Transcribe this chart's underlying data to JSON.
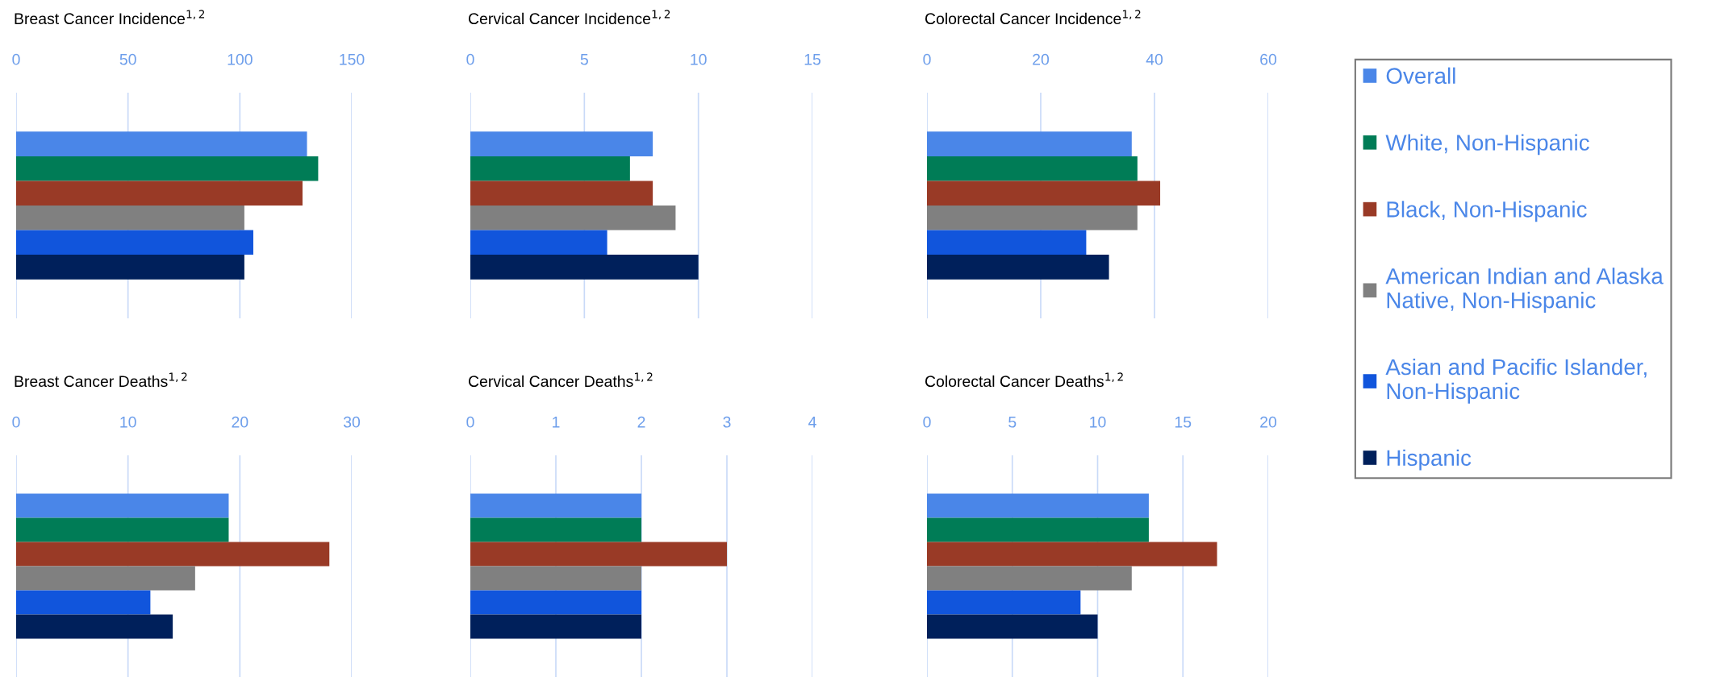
{
  "chart_data": [
    {
      "type": "bar",
      "orientation": "horizontal",
      "title": "Breast Cancer Incidence$^{1,2}$",
      "categories": [
        null
      ],
      "xlim": [
        0,
        150
      ],
      "xticks": [
        0,
        50,
        100,
        150
      ],
      "grid": "x",
      "tick_labels": "x",
      "legend": "right",
      "series": [
        {
          "name": "Overall",
          "color": "#4a86e8",
          "values": [
            130
          ]
        },
        {
          "name": "White, Non-Hispanic",
          "color": "#007c56",
          "values": [
            135
          ]
        },
        {
          "name": "Black, Non-Hispanic",
          "color": "#993a26",
          "values": [
            128
          ]
        },
        {
          "name": "American Indian and Alaska\nNative, Non-Hispanic",
          "color": "#808080",
          "values": [
            102
          ]
        },
        {
          "name": "Asian and Pacific Islander,\nNon-Hispanic",
          "color": "#1155dc",
          "values": [
            106
          ]
        },
        {
          "name": "Hispanic",
          "color": "#00205b",
          "values": [
            102
          ]
        }
      ]
    },
    {
      "type": "bar",
      "orientation": "horizontal",
      "title": "Cervical Cancer Incidence$^{1,2}$",
      "categories": [
        null
      ],
      "xlim": [
        0,
        15
      ],
      "xticks": [
        0,
        5,
        10,
        15
      ],
      "grid": "x",
      "tick_labels": "x",
      "series": [
        {
          "color": "#4a86e8",
          "values": [
            8
          ]
        },
        {
          "color": "#007c56",
          "values": [
            7
          ]
        },
        {
          "color": "#993a26",
          "values": [
            8
          ]
        },
        {
          "color": "#808080",
          "values": [
            9
          ]
        },
        {
          "color": "#1155dc",
          "values": [
            6
          ]
        },
        {
          "color": "#00205b",
          "values": [
            10
          ]
        }
      ]
    },
    {
      "type": "bar",
      "orientation": "horizontal",
      "title": "Colorectal Cancer Incidence$^{1,2}$",
      "categories": [
        null
      ],
      "xlim": [
        0,
        60
      ],
      "xticks": [
        0,
        20,
        40,
        60
      ],
      "grid": "x",
      "tick_labels": "x",
      "series": [
        {
          "color": "#4a86e8",
          "values": [
            36
          ]
        },
        {
          "color": "#007c56",
          "values": [
            37
          ]
        },
        {
          "color": "#993a26",
          "values": [
            41
          ]
        },
        {
          "color": "#808080",
          "values": [
            37
          ]
        },
        {
          "color": "#1155dc",
          "values": [
            28
          ]
        },
        {
          "color": "#00205b",
          "values": [
            32
          ]
        }
      ]
    },
    {
      "type": "bar",
      "orientation": "horizontal",
      "title": "Breast Cancer Deaths$^{1,2}$",
      "categories": [
        null
      ],
      "xlim": [
        0,
        30
      ],
      "xticks": [
        0,
        10,
        20,
        30
      ],
      "grid": "x",
      "tick_labels": "x",
      "series": [
        {
          "color": "#4a86e8",
          "values": [
            19
          ]
        },
        {
          "color": "#007c56",
          "values": [
            19
          ]
        },
        {
          "color": "#993a26",
          "values": [
            28
          ]
        },
        {
          "color": "#808080",
          "values": [
            16
          ]
        },
        {
          "color": "#1155dc",
          "values": [
            12
          ]
        },
        {
          "color": "#00205b",
          "values": [
            14
          ]
        }
      ]
    },
    {
      "type": "bar",
      "orientation": "horizontal",
      "title": "Cervical Cancer Deaths$^{1,2}$",
      "categories": [
        null
      ],
      "xlim": [
        0,
        4
      ],
      "xticks": [
        0,
        1,
        2,
        3,
        4
      ],
      "grid": "x",
      "tick_labels": "x",
      "series": [
        {
          "color": "#4a86e8",
          "values": [
            2
          ]
        },
        {
          "color": "#007c56",
          "values": [
            2
          ]
        },
        {
          "color": "#993a26",
          "values": [
            3
          ]
        },
        {
          "color": "#808080",
          "values": [
            2
          ]
        },
        {
          "color": "#1155dc",
          "values": [
            2
          ]
        },
        {
          "color": "#00205b",
          "values": [
            2
          ]
        }
      ]
    },
    {
      "type": "bar",
      "orientation": "horizontal",
      "title": "Colorectal Cancer Deaths$^{1,2}$",
      "categories": [
        null
      ],
      "xlim": [
        0,
        20
      ],
      "xticks": [
        0,
        5,
        10,
        15,
        20
      ],
      "grid": "x",
      "tick_labels": "x",
      "series": [
        {
          "color": "#4a86e8",
          "values": [
            13
          ]
        },
        {
          "color": "#007c56",
          "values": [
            13
          ]
        },
        {
          "color": "#993a26",
          "values": [
            17
          ]
        },
        {
          "color": "#808080",
          "values": [
            12
          ]
        },
        {
          "color": "#1155dc",
          "values": [
            9
          ]
        },
        {
          "color": "#00205b",
          "values": [
            10
          ]
        }
      ]
    }
  ]
}
